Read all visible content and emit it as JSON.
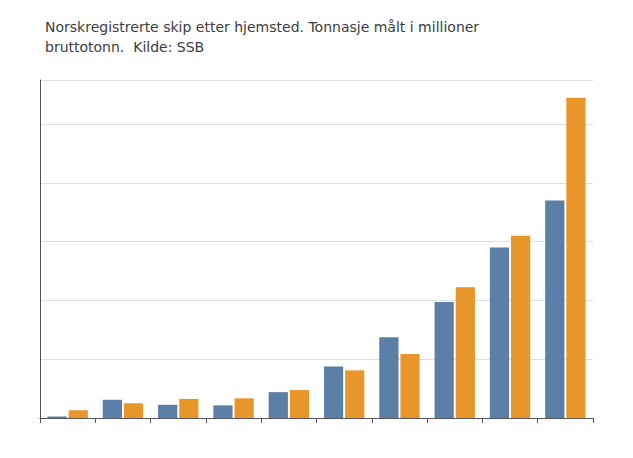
{
  "chart_data": {
    "type": "bar",
    "title": "Norskregistrerte skip etter hjemsted. Tonnasje målt i millioner\nbruttotonn.  Kilde: SSB",
    "categories": [
      null,
      null,
      null,
      null,
      null,
      null,
      null,
      null,
      null,
      null
    ],
    "series": [
      {
        "color": "#5b7fa6",
        "values": [
          0.05,
          0.62,
          0.45,
          0.43,
          0.88,
          1.75,
          2.75,
          3.95,
          5.8,
          7.4
        ]
      },
      {
        "color": "#e8952a",
        "values": [
          0.26,
          0.5,
          0.65,
          0.67,
          0.95,
          1.62,
          2.18,
          4.45,
          6.2,
          10.9
        ]
      }
    ],
    "ylim": [
      0,
      11.5
    ],
    "yticks": [
      0,
      2,
      4,
      6,
      8,
      10
    ],
    "grid": true,
    "tick_labels": false
  }
}
